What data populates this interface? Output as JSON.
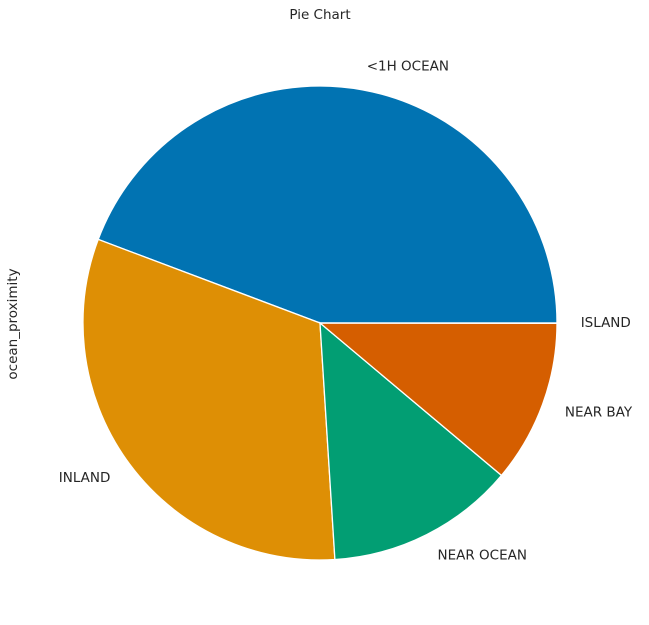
{
  "chart_data": {
    "type": "pie",
    "title": "Pie Chart",
    "ylabel": "ocean_proximity",
    "categories": [
      "<1H OCEAN",
      "INLAND",
      "NEAR OCEAN",
      "NEAR BAY",
      "ISLAND"
    ],
    "values": [
      9136,
      6551,
      2658,
      2290,
      5
    ],
    "colors": [
      "#0173b2",
      "#de8f05",
      "#029e73",
      "#d55e00",
      "#cc78bc"
    ],
    "start_angle_deg": 0,
    "direction": "counterclockwise"
  }
}
